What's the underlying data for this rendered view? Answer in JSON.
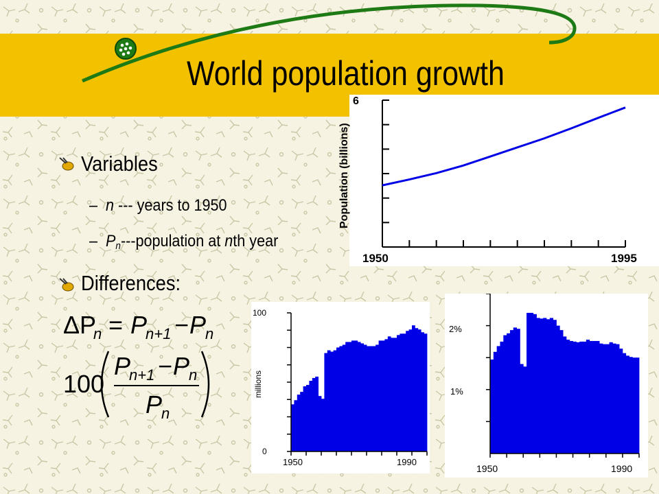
{
  "slide": {
    "title": "World population growth",
    "bullets": [
      {
        "label": "Variables"
      },
      {
        "label": "Differences:"
      }
    ],
    "sub_items": [
      {
        "var": "n",
        "text": " --- years to 1950"
      },
      {
        "var": "P",
        "subscript": "n",
        "text": "---population at ",
        "var2": "n",
        "text2": "th year"
      }
    ],
    "formulas": {
      "delta": {
        "lhs": "ΔP",
        "lhs_sub": "n",
        "eq": "=",
        "p1": "P",
        "p1_sub": "n+1",
        "minus": "−",
        "p2": "P",
        "p2_sub": "n"
      },
      "percent": {
        "factor": "100",
        "num_p1": "P",
        "num_p1_sub": "n+1",
        "num_minus": "−",
        "num_p2": "P",
        "num_p2_sub": "n",
        "den": "P",
        "den_sub": "n"
      }
    },
    "colors": {
      "title_bar": "#f2c100",
      "background": "#f6f3e3",
      "series": "#0000e6",
      "swoosh": "#1e7a14"
    }
  },
  "chart_data": [
    {
      "type": "line",
      "ylabel": "Population (billions)",
      "x_ticks": [
        "1950",
        "1995"
      ],
      "y_ticks": [
        "6"
      ],
      "xlim": [
        1950,
        1995
      ],
      "ylim": [
        0,
        6
      ],
      "x": [
        1950,
        1955,
        1960,
        1965,
        1970,
        1975,
        1980,
        1985,
        1990,
        1995
      ],
      "values": [
        2.52,
        2.76,
        3.02,
        3.33,
        3.7,
        4.07,
        4.44,
        4.85,
        5.28,
        5.7
      ]
    },
    {
      "type": "bar",
      "ylabel": "millions",
      "x_ticks": [
        "1950",
        "1990"
      ],
      "y_ticks": [
        "100",
        "0"
      ],
      "xlim": [
        1950,
        1995
      ],
      "ylim": [
        0,
        100
      ],
      "x": [
        1950,
        1951,
        1952,
        1953,
        1954,
        1955,
        1956,
        1957,
        1958,
        1959,
        1960,
        1961,
        1962,
        1963,
        1964,
        1965,
        1966,
        1967,
        1968,
        1969,
        1970,
        1971,
        1972,
        1973,
        1974,
        1975,
        1976,
        1977,
        1978,
        1979,
        1980,
        1981,
        1982,
        1983,
        1984,
        1985,
        1986,
        1987,
        1988,
        1989,
        1990,
        1991,
        1992,
        1993,
        1994
      ],
      "values": [
        34,
        37,
        41,
        43,
        47,
        48,
        51,
        53,
        54,
        40,
        38,
        71,
        73,
        72,
        73,
        75,
        76,
        77,
        79,
        79,
        80,
        80,
        79,
        78,
        77,
        76,
        76,
        76,
        77,
        80,
        80,
        81,
        83,
        82,
        82,
        84,
        85,
        85,
        87,
        88,
        91,
        89,
        88,
        86,
        85
      ]
    },
    {
      "type": "bar",
      "ylabel": "",
      "x_ticks": [
        "1950",
        "1990"
      ],
      "y_ticks": [
        "2%",
        "1%"
      ],
      "xlim": [
        1950,
        1995
      ],
      "ylim": [
        0,
        2.5
      ],
      "x": [
        1950,
        1951,
        1952,
        1953,
        1954,
        1955,
        1956,
        1957,
        1958,
        1959,
        1960,
        1961,
        1962,
        1963,
        1964,
        1965,
        1966,
        1967,
        1968,
        1969,
        1970,
        1971,
        1972,
        1973,
        1974,
        1975,
        1976,
        1977,
        1978,
        1979,
        1980,
        1981,
        1982,
        1983,
        1984,
        1985,
        1986,
        1987,
        1988,
        1989,
        1990,
        1991,
        1992,
        1993,
        1994
      ],
      "values": [
        1.47,
        1.59,
        1.68,
        1.75,
        1.85,
        1.88,
        1.93,
        1.97,
        1.95,
        1.4,
        1.36,
        2.2,
        2.2,
        2.18,
        2.12,
        2.11,
        2.12,
        2.1,
        2.12,
        2.09,
        2.0,
        1.93,
        1.83,
        1.78,
        1.76,
        1.75,
        1.74,
        1.75,
        1.75,
        1.78,
        1.76,
        1.76,
        1.76,
        1.72,
        1.71,
        1.71,
        1.74,
        1.72,
        1.71,
        1.64,
        1.57,
        1.53,
        1.51,
        1.5,
        1.5
      ]
    }
  ]
}
